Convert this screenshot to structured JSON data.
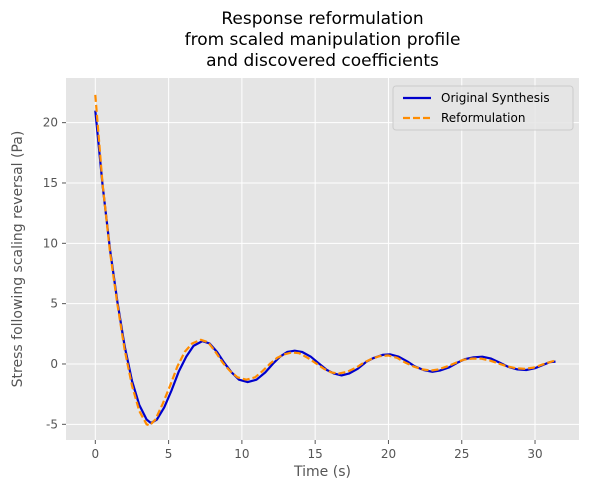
{
  "chart_data": {
    "type": "line",
    "title_lines": [
      "Response reformulation",
      "from scaled manipulation profile",
      "and discovered coefficients"
    ],
    "xlabel": "Time (s)",
    "ylabel": "Stress following scaling reversal (Pa)",
    "xlim": [
      -2,
      33
    ],
    "ylim": [
      -6.3,
      23.7
    ],
    "xticks": [
      0,
      5,
      10,
      15,
      20,
      25,
      30
    ],
    "yticks": [
      -5,
      0,
      5,
      10,
      15,
      20
    ],
    "grid": true,
    "legend_position": "top-right",
    "series": [
      {
        "name": "Original Synthesis",
        "color": "#0000cc",
        "style": "solid",
        "points": [
          [
            0,
            21
          ],
          [
            0.5,
            14.8
          ],
          [
            1,
            9.5
          ],
          [
            1.5,
            5.2
          ],
          [
            2,
            1.5
          ],
          [
            2.5,
            -1.4
          ],
          [
            3,
            -3.4
          ],
          [
            3.5,
            -4.6
          ],
          [
            3.8,
            -4.9
          ],
          [
            4.2,
            -4.6
          ],
          [
            4.7,
            -3.6
          ],
          [
            5.2,
            -2.2
          ],
          [
            5.7,
            -0.6
          ],
          [
            6.2,
            0.6
          ],
          [
            6.7,
            1.5
          ],
          [
            7.3,
            1.9
          ],
          [
            7.8,
            1.7
          ],
          [
            8.3,
            1.0
          ],
          [
            8.8,
            0.1
          ],
          [
            9.3,
            -0.7
          ],
          [
            9.8,
            -1.3
          ],
          [
            10.4,
            -1.5
          ],
          [
            11,
            -1.3
          ],
          [
            11.6,
            -0.7
          ],
          [
            12.1,
            0.0
          ],
          [
            12.6,
            0.6
          ],
          [
            13.1,
            1.0
          ],
          [
            13.6,
            1.1
          ],
          [
            14.1,
            1.0
          ],
          [
            14.7,
            0.6
          ],
          [
            15.2,
            0.1
          ],
          [
            15.8,
            -0.5
          ],
          [
            16.3,
            -0.8
          ],
          [
            16.8,
            -0.95
          ],
          [
            17.3,
            -0.8
          ],
          [
            17.9,
            -0.4
          ],
          [
            18.5,
            0.2
          ],
          [
            19.0,
            0.5
          ],
          [
            19.6,
            0.75
          ],
          [
            20.1,
            0.8
          ],
          [
            20.7,
            0.6
          ],
          [
            21.3,
            0.2
          ],
          [
            21.8,
            -0.2
          ],
          [
            22.4,
            -0.5
          ],
          [
            23.0,
            -0.65
          ],
          [
            23.5,
            -0.55
          ],
          [
            24.1,
            -0.3
          ],
          [
            24.7,
            0.1
          ],
          [
            25.2,
            0.4
          ],
          [
            25.8,
            0.55
          ],
          [
            26.4,
            0.6
          ],
          [
            27.0,
            0.45
          ],
          [
            27.6,
            0.1
          ],
          [
            28.2,
            -0.25
          ],
          [
            28.8,
            -0.45
          ],
          [
            29.4,
            -0.5
          ],
          [
            30.0,
            -0.35
          ],
          [
            30.6,
            -0.05
          ],
          [
            31.0,
            0.15
          ],
          [
            31.4,
            0.2
          ]
        ]
      },
      {
        "name": "Reformulation",
        "color": "#ff8c00",
        "style": "dashed",
        "points": [
          [
            0,
            22.3
          ],
          [
            0.5,
            14.9
          ],
          [
            1,
            9.3
          ],
          [
            1.5,
            5.0
          ],
          [
            2,
            1.2
          ],
          [
            2.5,
            -1.8
          ],
          [
            3,
            -3.9
          ],
          [
            3.5,
            -5.0
          ],
          [
            3.7,
            -5.1
          ],
          [
            4.1,
            -4.6
          ],
          [
            4.6,
            -3.3
          ],
          [
            5.1,
            -1.8
          ],
          [
            5.6,
            -0.2
          ],
          [
            6.1,
            1.0
          ],
          [
            6.6,
            1.7
          ],
          [
            7.2,
            2.0
          ],
          [
            7.7,
            1.8
          ],
          [
            8.2,
            1.0
          ],
          [
            8.7,
            0.1
          ],
          [
            9.2,
            -0.6
          ],
          [
            9.7,
            -1.1
          ],
          [
            10.3,
            -1.3
          ],
          [
            10.9,
            -1.1
          ],
          [
            11.4,
            -0.6
          ],
          [
            11.9,
            0.0
          ],
          [
            12.4,
            0.5
          ],
          [
            12.9,
            0.8
          ],
          [
            13.4,
            0.95
          ],
          [
            13.9,
            0.9
          ],
          [
            14.5,
            0.5
          ],
          [
            15.0,
            0.1
          ],
          [
            15.6,
            -0.4
          ],
          [
            16.1,
            -0.7
          ],
          [
            16.6,
            -0.8
          ],
          [
            17.2,
            -0.65
          ],
          [
            17.8,
            -0.3
          ],
          [
            18.3,
            0.1
          ],
          [
            18.9,
            0.45
          ],
          [
            19.4,
            0.65
          ],
          [
            20.0,
            0.7
          ],
          [
            20.6,
            0.5
          ],
          [
            21.1,
            0.15
          ],
          [
            21.7,
            -0.2
          ],
          [
            22.3,
            -0.45
          ],
          [
            22.9,
            -0.55
          ],
          [
            23.4,
            -0.45
          ],
          [
            24.0,
            -0.2
          ],
          [
            24.6,
            0.1
          ],
          [
            25.1,
            0.35
          ],
          [
            25.7,
            0.45
          ],
          [
            26.3,
            0.45
          ],
          [
            26.9,
            0.3
          ],
          [
            27.5,
            0.05
          ],
          [
            28.1,
            -0.2
          ],
          [
            28.7,
            -0.35
          ],
          [
            29.3,
            -0.4
          ],
          [
            29.9,
            -0.3
          ],
          [
            30.5,
            -0.05
          ],
          [
            31.0,
            0.15
          ],
          [
            31.4,
            0.3
          ]
        ]
      }
    ]
  }
}
